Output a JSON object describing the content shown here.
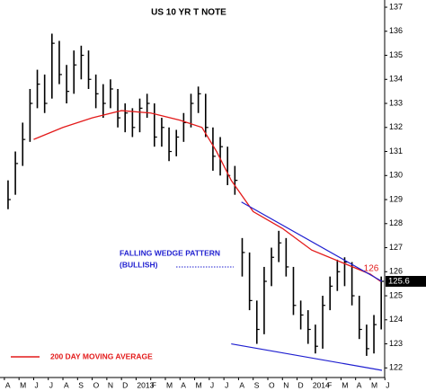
{
  "chart_data": {
    "type": "ohlc",
    "title": "US 10 YR T NOTE",
    "xlim": [
      -0.3,
      25.8
    ],
    "xticks": [
      {
        "value": 0,
        "label": "A"
      },
      {
        "value": 1,
        "label": "M"
      },
      {
        "value": 2,
        "label": "J"
      },
      {
        "value": 3,
        "label": "J"
      },
      {
        "value": 4,
        "label": "A"
      },
      {
        "value": 5,
        "label": "S"
      },
      {
        "value": 6,
        "label": "O"
      },
      {
        "value": 7,
        "label": "N"
      },
      {
        "value": 8,
        "label": "D"
      },
      {
        "value": 9,
        "label": "2013"
      },
      {
        "value": 10,
        "label": "F"
      },
      {
        "value": 11,
        "label": "M"
      },
      {
        "value": 12,
        "label": "A"
      },
      {
        "value": 13,
        "label": "M"
      },
      {
        "value": 14,
        "label": "J"
      },
      {
        "value": 15,
        "label": "J"
      },
      {
        "value": 16,
        "label": "A"
      },
      {
        "value": 17,
        "label": "S"
      },
      {
        "value": 18,
        "label": "O"
      },
      {
        "value": 19,
        "label": "N"
      },
      {
        "value": 20,
        "label": "D"
      },
      {
        "value": 21,
        "label": "2014"
      },
      {
        "value": 22,
        "label": "F"
      },
      {
        "value": 23,
        "label": "M"
      },
      {
        "value": 24,
        "label": "A"
      },
      {
        "value": 25,
        "label": "M"
      },
      {
        "value": 26,
        "label": "J"
      }
    ],
    "ylim": [
      121.6,
      137.3
    ],
    "yticks": [
      122,
      123,
      124,
      125,
      126,
      127,
      128,
      129,
      130,
      131,
      132,
      133,
      134,
      135,
      136,
      137
    ],
    "price": {
      "color": "#000000",
      "x": [
        0.25,
        0.75,
        1.25,
        1.75,
        2.25,
        2.75,
        3.25,
        3.75,
        4.25,
        4.75,
        5.25,
        5.75,
        6.25,
        6.75,
        7.25,
        7.75,
        8.25,
        8.75,
        9.25,
        9.75,
        10.25,
        10.75,
        11.25,
        11.75,
        12.25,
        12.75,
        13.25,
        13.75,
        14.25,
        14.75,
        15.25,
        15.75,
        16.25,
        16.75,
        17.25,
        17.75,
        18.25,
        18.75,
        19.25,
        19.75,
        20.25,
        20.75,
        21.25,
        21.75,
        22.25,
        22.75,
        23.25,
        23.75,
        24.25,
        24.75,
        25.25,
        25.75
      ],
      "high": [
        129.8,
        131.0,
        132.2,
        133.6,
        134.4,
        134.2,
        135.9,
        135.6,
        134.6,
        135.2,
        135.4,
        135.2,
        134.2,
        133.8,
        134.0,
        133.6,
        133.0,
        132.8,
        133.2,
        133.4,
        133.0,
        132.4,
        132.0,
        131.9,
        132.6,
        133.4,
        133.7,
        133.4,
        132.0,
        131.6,
        131.2,
        130.4,
        127.4,
        126.8,
        124.8,
        126.2,
        127.0,
        127.7,
        127.4,
        126.2,
        124.8,
        124.4,
        123.8,
        125.0,
        125.8,
        126.5,
        126.6,
        126.4,
        125.0,
        123.8,
        124.2,
        125.8
      ],
      "low": [
        128.6,
        129.2,
        130.4,
        131.4,
        132.8,
        132.6,
        133.2,
        133.8,
        133.0,
        133.4,
        134.0,
        133.6,
        132.8,
        132.4,
        132.8,
        132.0,
        131.8,
        131.6,
        131.8,
        132.4,
        131.2,
        131.2,
        130.6,
        130.8,
        131.4,
        132.0,
        132.6,
        131.6,
        130.2,
        130.0,
        129.6,
        129.2,
        125.8,
        124.4,
        123.0,
        123.4,
        125.4,
        126.4,
        125.8,
        124.2,
        123.6,
        123.0,
        122.6,
        122.8,
        124.4,
        125.2,
        125.4,
        124.6,
        123.2,
        122.5,
        122.6,
        123.6
      ],
      "close": [
        129.0,
        130.5,
        131.5,
        133.0,
        133.8,
        133.0,
        135.5,
        134.2,
        133.5,
        134.6,
        135.0,
        134.0,
        133.4,
        133.0,
        133.6,
        132.4,
        132.6,
        132.0,
        132.8,
        133.0,
        131.6,
        132.0,
        131.0,
        131.6,
        132.2,
        133.0,
        133.4,
        132.0,
        130.8,
        131.2,
        130.0,
        129.8,
        126.8,
        124.8,
        123.6,
        125.6,
        126.6,
        127.2,
        126.2,
        124.6,
        124.2,
        123.6,
        122.9,
        124.6,
        125.4,
        126.0,
        126.4,
        125.0,
        123.6,
        122.8,
        123.8,
        125.6
      ]
    },
    "moving_average": {
      "name": "200 DAY MOVING AVERAGE",
      "color": "#e31a1a",
      "end_label": "126",
      "x": [
        2,
        4,
        6,
        8,
        10,
        12,
        13.5,
        14.5,
        15.5,
        17,
        19,
        21,
        23,
        25,
        25.7
      ],
      "values": [
        131.5,
        132.0,
        132.4,
        132.7,
        132.6,
        132.3,
        132.0,
        131.0,
        129.8,
        128.5,
        127.8,
        126.9,
        126.4,
        125.9,
        125.6
      ]
    },
    "trendlines": {
      "color": "#1f1fd0",
      "lines": [
        {
          "x": [
            16.2,
            25.8
          ],
          "y": [
            128.9,
            125.6
          ]
        },
        {
          "x": [
            15.5,
            25.8
          ],
          "y": [
            123.0,
            121.9
          ]
        }
      ]
    },
    "annotation": {
      "color": "#1f1fd0",
      "lines": [
        "FALLING WEDGE PATTERN",
        "(BULLISH)"
      ]
    }
  }
}
